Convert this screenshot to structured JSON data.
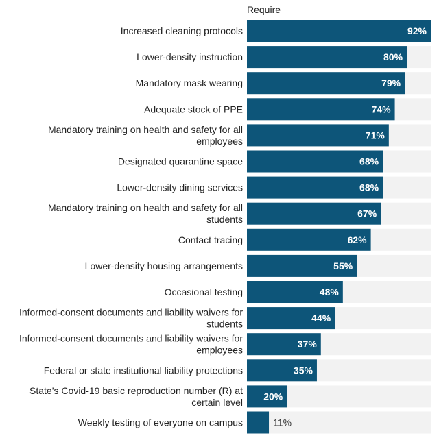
{
  "chart_data": {
    "type": "bar",
    "orientation": "horizontal",
    "column_header": "Require",
    "categories": [
      [
        "Increased cleaning protocols"
      ],
      [
        "Lower-density instruction"
      ],
      [
        "Mandatory mask wearing"
      ],
      [
        "Adequate stock of PPE"
      ],
      [
        "Mandatory training on health and safety for all",
        "employees"
      ],
      [
        "Designated quarantine space"
      ],
      [
        "Lower-density dining services"
      ],
      [
        "Mandatory training on health and safety for all",
        "students"
      ],
      [
        "Contact tracing"
      ],
      [
        "Lower-density housing arrangements"
      ],
      [
        "Occasional testing"
      ],
      [
        "Informed-consent documents and liability waivers for",
        "students"
      ],
      [
        "Informed-consent documents and liability waivers for",
        "employees"
      ],
      [
        "Federal or state institutional liability protections"
      ],
      [
        "State’s Covid-19 basic reproduction number (R) at",
        "certain level"
      ],
      [
        "Weekly testing of everyone on campus"
      ]
    ],
    "values": [
      92,
      80,
      79,
      74,
      71,
      68,
      68,
      67,
      62,
      55,
      48,
      44,
      37,
      35,
      20,
      11
    ],
    "value_labels": [
      "92%",
      "80%",
      "79%",
      "74%",
      "71%",
      "68%",
      "68%",
      "67%",
      "62%",
      "55%",
      "48%",
      "44%",
      "37%",
      "35%",
      "20%",
      "11%"
    ],
    "xlim": [
      0,
      92
    ],
    "colors": {
      "bar": "#0d5579",
      "track": "#f2f2f2"
    }
  }
}
